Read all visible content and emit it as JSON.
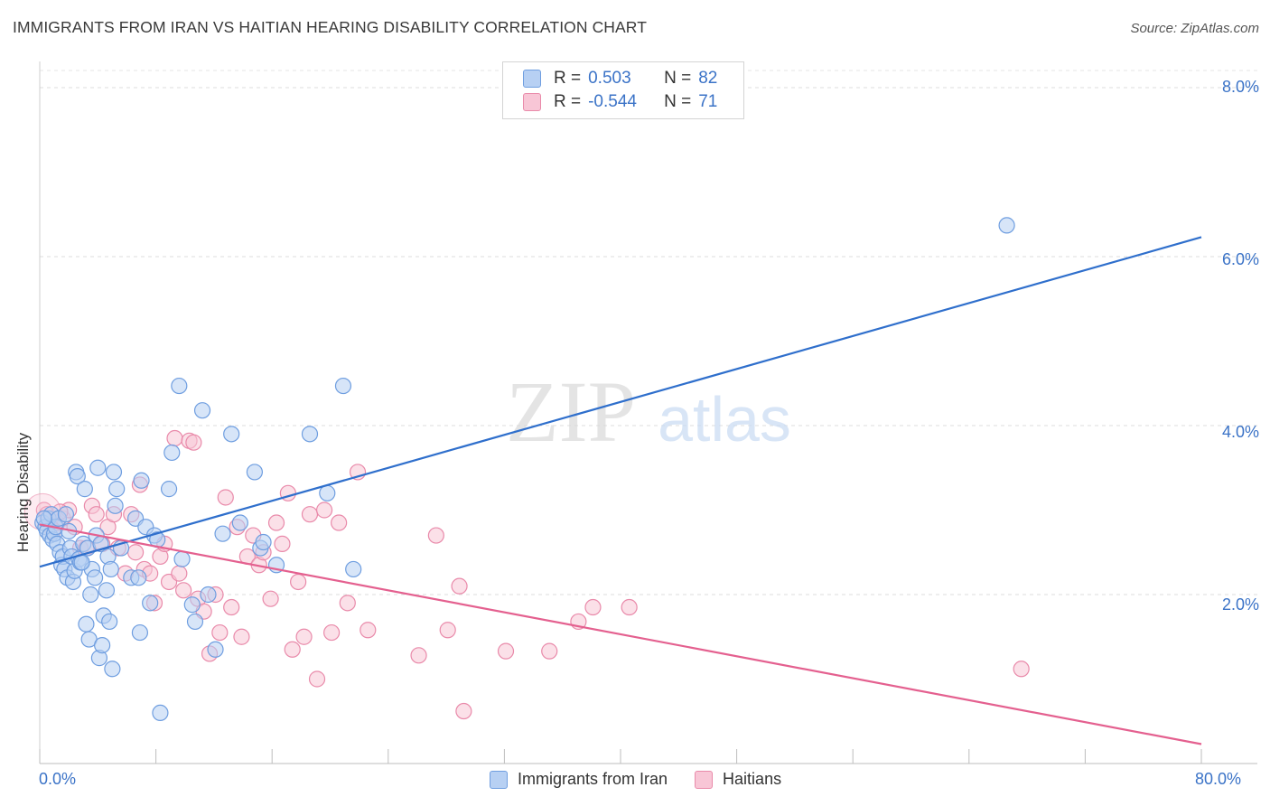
{
  "header": {
    "title": "IMMIGRANTS FROM IRAN VS HAITIAN HEARING DISABILITY CORRELATION CHART",
    "source": "Source: ZipAtlas.com"
  },
  "watermark": {
    "zip": "ZIP",
    "atlas": "atlas"
  },
  "legend": {
    "rows": [
      {
        "r_label": "R =",
        "r_value": "0.503",
        "n_label": "N =",
        "n_value": "82"
      },
      {
        "r_label": "R =",
        "r_value": "-0.544",
        "n_label": "N =",
        "n_value": "71"
      }
    ],
    "bottom": [
      "Immigrants from Iran",
      "Haitians"
    ]
  },
  "colors": {
    "blue_fill": "#b7d0f3",
    "blue_stroke": "#6f9ee0",
    "blue_line": "#2f6fcc",
    "pink_fill": "#f8c6d6",
    "pink_stroke": "#e98aaa",
    "pink_line": "#e4608f",
    "tick_text": "#3b73c7"
  },
  "chart_data": {
    "type": "scatter",
    "title": "IMMIGRANTS FROM IRAN VS HAITIAN HEARING DISABILITY CORRELATION CHART",
    "xlabel": "",
    "ylabel": "Hearing Disability",
    "xlim": [
      0,
      80
    ],
    "ylim": [
      0,
      8.6
    ],
    "x_tick_labels": [
      "0.0%",
      "80.0%"
    ],
    "y_ticks": [
      2,
      4,
      6,
      8
    ],
    "y_tick_labels": [
      "2.0%",
      "4.0%",
      "6.0%",
      "8.0%"
    ],
    "grid": true,
    "series": [
      {
        "name": "Immigrants from Iran",
        "r": 0.503,
        "n": 82,
        "trend": {
          "x": [
            0,
            80
          ],
          "y": [
            2.33,
            6.23
          ]
        },
        "points": [
          [
            0.2,
            2.85
          ],
          [
            0.4,
            2.8
          ],
          [
            0.5,
            2.75
          ],
          [
            0.6,
            2.9
          ],
          [
            0.7,
            2.7
          ],
          [
            0.8,
            2.95
          ],
          [
            0.9,
            2.65
          ],
          [
            1.0,
            2.72
          ],
          [
            1.1,
            2.8
          ],
          [
            1.2,
            2.6
          ],
          [
            1.3,
            2.9
          ],
          [
            1.4,
            2.5
          ],
          [
            1.5,
            2.35
          ],
          [
            1.6,
            2.45
          ],
          [
            1.7,
            2.3
          ],
          [
            1.8,
            2.95
          ],
          [
            1.9,
            2.2
          ],
          [
            2.0,
            2.75
          ],
          [
            2.1,
            2.55
          ],
          [
            2.2,
            2.45
          ],
          [
            2.3,
            2.15
          ],
          [
            2.4,
            2.28
          ],
          [
            2.5,
            3.45
          ],
          [
            2.6,
            3.4
          ],
          [
            2.7,
            2.42
          ],
          [
            2.8,
            2.38
          ],
          [
            3.0,
            2.6
          ],
          [
            3.1,
            3.25
          ],
          [
            3.2,
            1.65
          ],
          [
            3.3,
            2.55
          ],
          [
            3.4,
            1.47
          ],
          [
            3.5,
            2.0
          ],
          [
            3.6,
            2.3
          ],
          [
            3.8,
            2.2
          ],
          [
            3.9,
            2.7
          ],
          [
            4.0,
            3.5
          ],
          [
            4.1,
            1.25
          ],
          [
            4.2,
            2.6
          ],
          [
            4.3,
            1.4
          ],
          [
            4.4,
            1.75
          ],
          [
            4.6,
            2.05
          ],
          [
            4.7,
            2.45
          ],
          [
            4.8,
            1.68
          ],
          [
            4.9,
            2.3
          ],
          [
            5.0,
            1.12
          ],
          [
            5.1,
            3.45
          ],
          [
            5.2,
            3.05
          ],
          [
            5.3,
            3.25
          ],
          [
            5.6,
            2.55
          ],
          [
            6.3,
            2.2
          ],
          [
            6.6,
            2.9
          ],
          [
            6.8,
            2.2
          ],
          [
            6.9,
            1.55
          ],
          [
            7.0,
            3.35
          ],
          [
            7.3,
            2.8
          ],
          [
            7.6,
            1.9
          ],
          [
            7.9,
            2.7
          ],
          [
            8.1,
            2.65
          ],
          [
            8.3,
            0.6
          ],
          [
            8.9,
            3.25
          ],
          [
            9.1,
            3.68
          ],
          [
            9.6,
            4.47
          ],
          [
            9.8,
            2.42
          ],
          [
            10.5,
            1.88
          ],
          [
            10.7,
            1.68
          ],
          [
            11.2,
            4.18
          ],
          [
            11.6,
            2.0
          ],
          [
            12.1,
            1.35
          ],
          [
            12.6,
            2.72
          ],
          [
            13.2,
            3.9
          ],
          [
            13.8,
            2.85
          ],
          [
            14.8,
            3.45
          ],
          [
            15.2,
            2.55
          ],
          [
            15.4,
            2.62
          ],
          [
            16.3,
            2.35
          ],
          [
            18.6,
            3.9
          ],
          [
            19.8,
            3.2
          ],
          [
            20.9,
            4.47
          ],
          [
            21.6,
            2.3
          ],
          [
            66.6,
            6.37
          ],
          [
            0.3,
            2.9
          ],
          [
            2.9,
            2.38
          ]
        ]
      },
      {
        "name": "Haitians",
        "r": -0.544,
        "n": 71,
        "trend": {
          "x": [
            0,
            80
          ],
          "y": [
            2.83,
            0.23
          ]
        },
        "points": [
          [
            0.3,
            3.0
          ],
          [
            0.6,
            2.9
          ],
          [
            0.9,
            2.75
          ],
          [
            1.2,
            2.85
          ],
          [
            1.6,
            2.9
          ],
          [
            2.0,
            3.0
          ],
          [
            2.4,
            2.8
          ],
          [
            2.8,
            2.55
          ],
          [
            3.2,
            2.55
          ],
          [
            3.6,
            3.05
          ],
          [
            3.9,
            2.95
          ],
          [
            4.3,
            2.6
          ],
          [
            4.7,
            2.8
          ],
          [
            5.1,
            2.95
          ],
          [
            5.4,
            2.55
          ],
          [
            5.9,
            2.25
          ],
          [
            6.3,
            2.95
          ],
          [
            6.6,
            2.5
          ],
          [
            6.9,
            3.3
          ],
          [
            7.2,
            2.3
          ],
          [
            7.6,
            2.25
          ],
          [
            7.9,
            1.9
          ],
          [
            8.3,
            2.45
          ],
          [
            8.6,
            2.6
          ],
          [
            8.9,
            2.15
          ],
          [
            9.3,
            3.85
          ],
          [
            9.6,
            2.25
          ],
          [
            9.9,
            2.05
          ],
          [
            10.3,
            3.82
          ],
          [
            10.6,
            3.8
          ],
          [
            10.9,
            1.95
          ],
          [
            11.3,
            1.8
          ],
          [
            11.7,
            1.3
          ],
          [
            12.1,
            2.0
          ],
          [
            12.4,
            1.55
          ],
          [
            12.8,
            3.15
          ],
          [
            13.2,
            1.85
          ],
          [
            13.6,
            2.8
          ],
          [
            13.9,
            1.5
          ],
          [
            14.3,
            2.45
          ],
          [
            14.7,
            2.7
          ],
          [
            15.1,
            2.35
          ],
          [
            15.4,
            2.5
          ],
          [
            15.9,
            1.95
          ],
          [
            16.3,
            2.85
          ],
          [
            16.7,
            2.6
          ],
          [
            17.1,
            3.2
          ],
          [
            17.4,
            1.35
          ],
          [
            17.8,
            2.15
          ],
          [
            18.2,
            1.5
          ],
          [
            18.6,
            2.95
          ],
          [
            19.1,
            1.0
          ],
          [
            19.6,
            3.0
          ],
          [
            20.1,
            1.55
          ],
          [
            20.6,
            2.85
          ],
          [
            21.2,
            1.9
          ],
          [
            21.9,
            3.45
          ],
          [
            22.6,
            1.58
          ],
          [
            26.1,
            1.28
          ],
          [
            27.3,
            2.7
          ],
          [
            28.1,
            1.58
          ],
          [
            28.9,
            2.1
          ],
          [
            29.2,
            0.62
          ],
          [
            32.1,
            1.33
          ],
          [
            35.1,
            1.33
          ],
          [
            37.1,
            1.68
          ],
          [
            38.1,
            1.85
          ],
          [
            40.6,
            1.85
          ],
          [
            67.6,
            1.12
          ],
          [
            0.5,
            2.95
          ],
          [
            1.4,
            2.98
          ]
        ]
      }
    ]
  }
}
